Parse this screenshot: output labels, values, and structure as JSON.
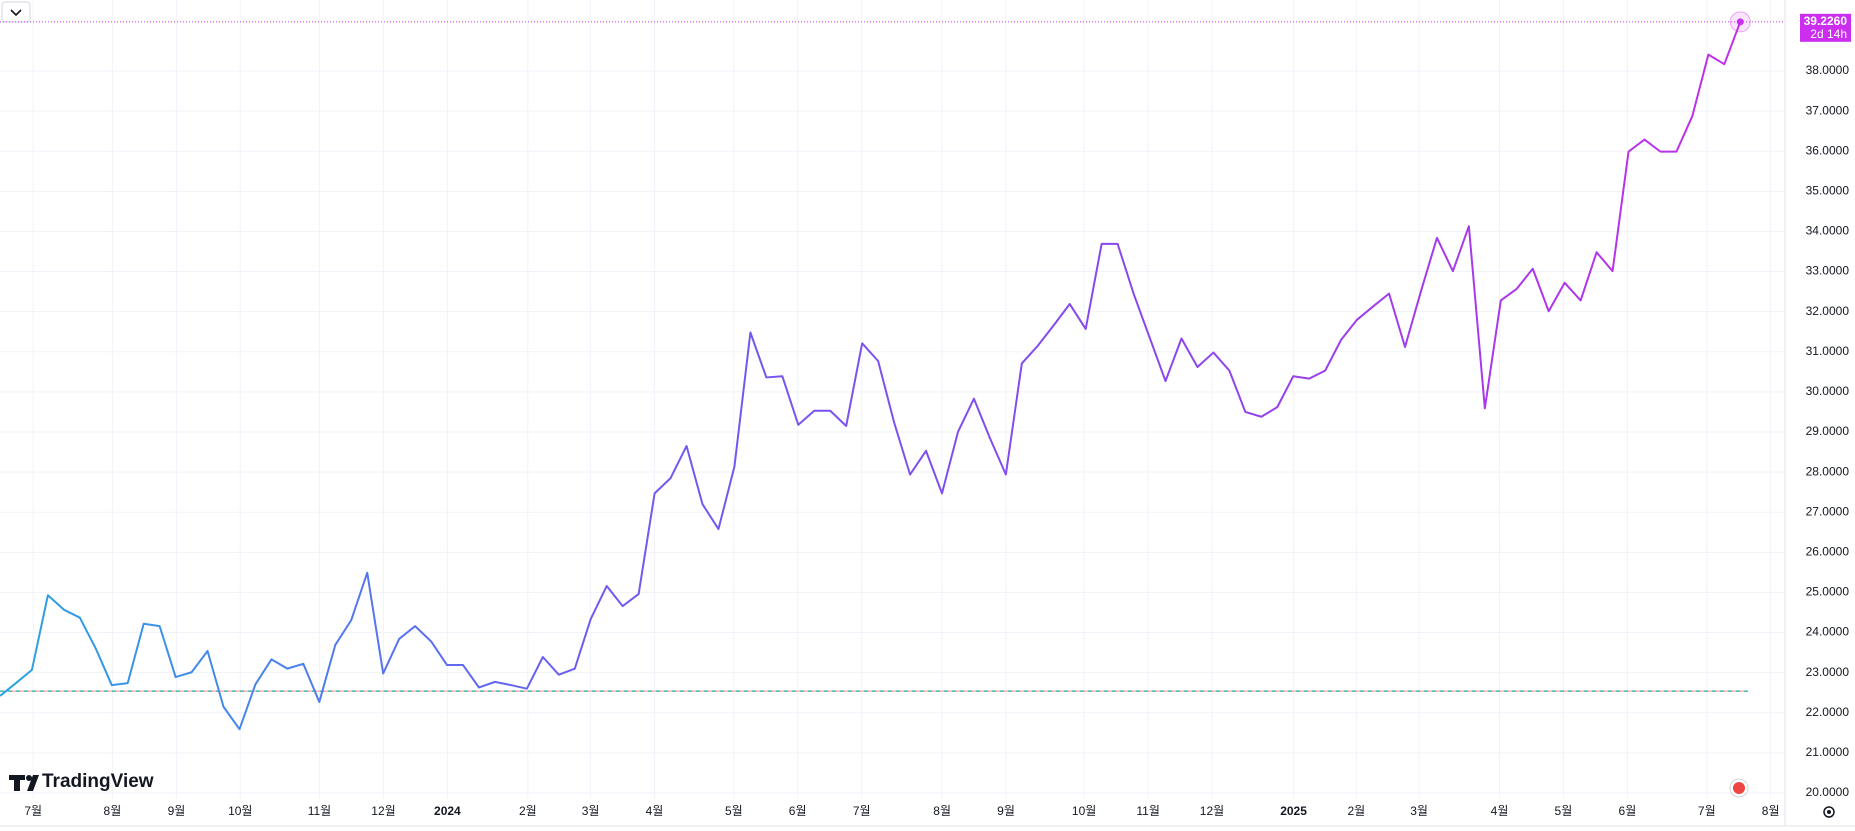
{
  "chart_data": {
    "type": "line",
    "brand": "TradingView",
    "series": [
      {
        "colors": [
          "#2aa4e2",
          "#6d5cf2",
          "#8a46ee",
          "#c12ee8"
        ],
        "values": [
          22.42,
          22.74,
          23.07,
          24.93,
          24.57,
          24.37,
          23.6,
          22.69,
          22.74,
          24.22,
          24.16,
          22.89,
          23.01,
          23.54,
          22.15,
          21.59,
          22.71,
          23.33,
          23.1,
          23.22,
          22.27,
          23.69,
          24.31,
          25.49,
          22.98,
          23.84,
          24.16,
          23.78,
          23.19,
          23.19,
          22.63,
          22.77,
          22.69,
          22.6,
          23.39,
          22.95,
          23.1,
          24.34,
          25.16,
          24.66,
          24.96,
          27.47,
          27.85,
          28.65,
          27.2,
          26.58,
          28.14,
          31.48,
          30.36,
          30.39,
          29.18,
          29.53,
          29.53,
          29.15,
          31.21,
          30.77,
          29.24,
          27.94,
          28.53,
          27.47,
          29.0,
          29.83,
          28.85,
          27.94,
          30.71,
          31.15,
          31.66,
          32.19,
          31.57,
          33.69,
          33.69,
          32.45,
          31.36,
          30.27,
          31.33,
          30.62,
          30.98,
          30.53,
          29.5,
          29.38,
          29.62,
          30.39,
          30.33,
          30.53,
          31.3,
          31.8,
          32.13,
          32.45,
          31.12,
          32.51,
          33.84,
          33.01,
          34.13,
          29.59,
          32.28,
          32.57,
          33.07,
          32.01,
          32.72,
          32.28,
          33.48,
          33.01,
          35.99,
          36.29,
          35.99,
          35.99,
          36.88,
          38.41,
          38.17,
          39.226
        ]
      }
    ],
    "last_price": {
      "label": "39.2260",
      "countdown": "2d 14h",
      "color": "#cc2ef0"
    },
    "baseline": 22.54,
    "xlim": [
      0,
      111.8
    ],
    "xticks": [
      {
        "value": 2.08,
        "label": "7월"
      },
      {
        "value": 7.04,
        "label": "8월"
      },
      {
        "value": 11.05,
        "label": "9월"
      },
      {
        "value": 15.05,
        "label": "10월"
      },
      {
        "value": 20.01,
        "label": "11월"
      },
      {
        "value": 24.02,
        "label": "12월"
      },
      {
        "value": 28.02,
        "label": "2024"
      },
      {
        "value": 33.06,
        "label": "2월"
      },
      {
        "value": 36.99,
        "label": "3월"
      },
      {
        "value": 40.99,
        "label": "4월"
      },
      {
        "value": 45.96,
        "label": "5월"
      },
      {
        "value": 49.96,
        "label": "6월"
      },
      {
        "value": 53.97,
        "label": "7월"
      },
      {
        "value": 59.01,
        "label": "8월"
      },
      {
        "value": 63.01,
        "label": "9월"
      },
      {
        "value": 67.9,
        "label": "10월"
      },
      {
        "value": 71.91,
        "label": "11월"
      },
      {
        "value": 75.91,
        "label": "12월"
      },
      {
        "value": 81.02,
        "label": "2025"
      },
      {
        "value": 84.95,
        "label": "2월"
      },
      {
        "value": 88.88,
        "label": "3월"
      },
      {
        "value": 93.92,
        "label": "4월"
      },
      {
        "value": 97.92,
        "label": "5월"
      },
      {
        "value": 101.93,
        "label": "6월"
      },
      {
        "value": 106.9,
        "label": "7월"
      },
      {
        "value": 110.9,
        "label": "8월"
      }
    ],
    "ylim": [
      19.85,
      39.77
    ],
    "yticks": [
      {
        "value": 20,
        "label": "20.0000"
      },
      {
        "value": 21,
        "label": "21.0000"
      },
      {
        "value": 22,
        "label": "22.0000"
      },
      {
        "value": 23,
        "label": "23.0000"
      },
      {
        "value": 24,
        "label": "24.0000"
      },
      {
        "value": 25,
        "label": "25.0000"
      },
      {
        "value": 26,
        "label": "26.0000"
      },
      {
        "value": 27,
        "label": "27.0000"
      },
      {
        "value": 28,
        "label": "28.0000"
      },
      {
        "value": 29,
        "label": "29.0000"
      },
      {
        "value": 30,
        "label": "30.0000"
      },
      {
        "value": 31,
        "label": "31.0000"
      },
      {
        "value": 32,
        "label": "32.0000"
      },
      {
        "value": 33,
        "label": "33.0000"
      },
      {
        "value": 34,
        "label": "34.0000"
      },
      {
        "value": 35,
        "label": "35.0000"
      },
      {
        "value": 36,
        "label": "36.0000"
      },
      {
        "value": 37,
        "label": "37.0000"
      },
      {
        "value": 38,
        "label": "38.0000"
      }
    ],
    "grid": true
  }
}
